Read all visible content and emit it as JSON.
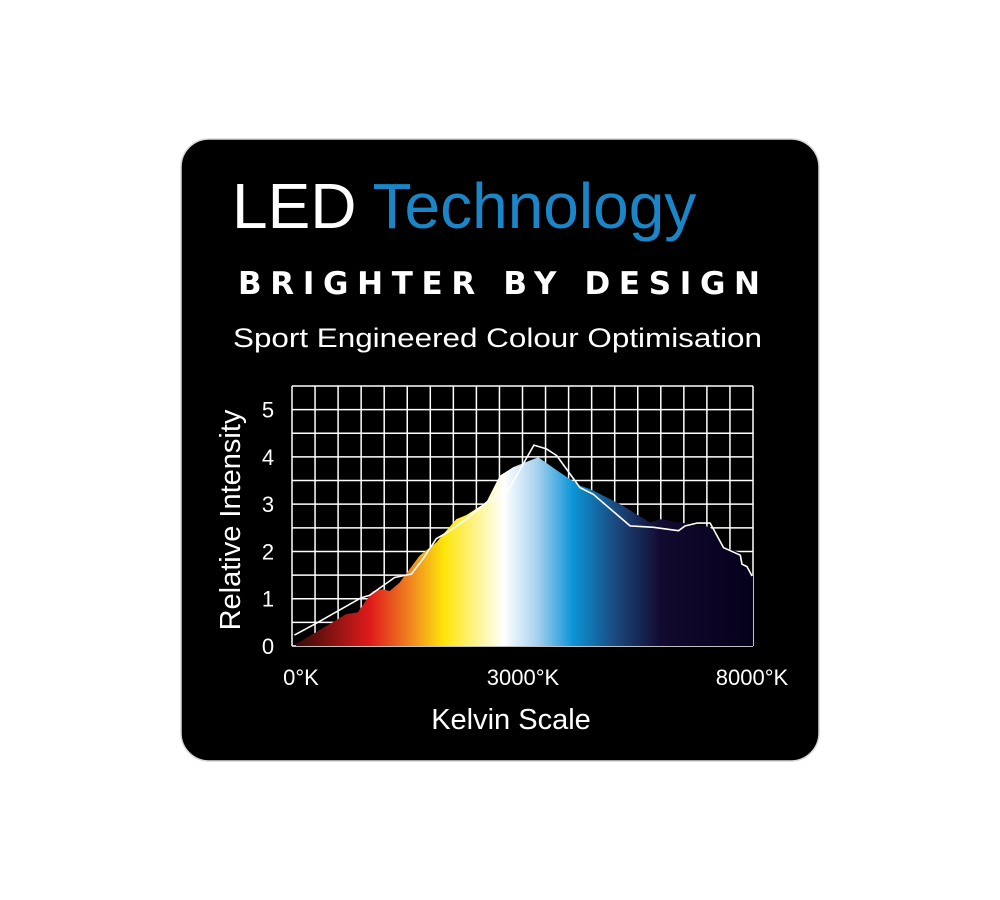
{
  "header": {
    "title_part1": "LED",
    "title_part2": "Technology",
    "tagline": "BRIGHTER BY DESIGN",
    "subtitle": "Sport Engineered Colour Optimisation"
  },
  "colors": {
    "background": "#000000",
    "title_accent": "#1a86c8",
    "text": "#ffffff",
    "grid": "#ffffff"
  },
  "chart_data": {
    "type": "area",
    "xlabel": "Kelvin Scale",
    "ylabel": "Relative Intensity",
    "xlim": [
      0,
      8000
    ],
    "ylim": [
      0,
      5.5
    ],
    "x_tick_labels": [
      "0°K",
      "3000°K",
      "8000°K"
    ],
    "y_ticks": [
      "0",
      "1",
      "2",
      "3",
      "4",
      "5"
    ],
    "grid": true,
    "fill_gradient": [
      "#2a0a08",
      "#e01b1b",
      "#f08a1f",
      "#fde60a",
      "#ffffff",
      "#a9d3f0",
      "#0b94d6",
      "#1b4a80",
      "#120a30",
      "#05001a"
    ],
    "series": [
      {
        "style": "gradient-area",
        "x": [
          70,
          939,
          1142,
          1403,
          1577,
          1693,
          1867,
          2214,
          2504,
          2852,
          3026,
          3374,
          3606,
          3838,
          4272,
          4649,
          4997,
          5171,
          5693,
          6214,
          6388,
          6736,
          7142,
          7258,
          7490,
          7780,
          7809,
          7896,
          8000
        ],
        "y": [
          0.04,
          0.67,
          0.71,
          1.16,
          1.2,
          1.16,
          1.34,
          1.91,
          2.19,
          2.68,
          2.77,
          3.04,
          3.6,
          3.78,
          3.99,
          3.67,
          3.39,
          3.32,
          3.0,
          2.61,
          2.68,
          2.61,
          2.54,
          2.51,
          2.08,
          1.98,
          1.73,
          1.68,
          1.48
        ]
      },
      {
        "style": "white-line",
        "x": [
          41,
          388,
          1200,
          1345,
          1780,
          2070,
          2272,
          2504,
          2678,
          3026,
          3374,
          3780,
          4197,
          4417,
          4591,
          4997,
          5229,
          5867,
          6272,
          6707,
          6823,
          7026,
          7258,
          7490,
          7780,
          7809,
          7896,
          7983
        ],
        "y": [
          0.23,
          0.46,
          1.02,
          1.07,
          1.45,
          1.52,
          1.84,
          2.27,
          2.39,
          2.68,
          3.04,
          3.35,
          4.25,
          4.17,
          4.03,
          3.35,
          3.21,
          2.54,
          2.51,
          2.44,
          2.54,
          2.6,
          2.6,
          2.08,
          1.92,
          1.73,
          1.68,
          1.48
        ]
      }
    ]
  }
}
